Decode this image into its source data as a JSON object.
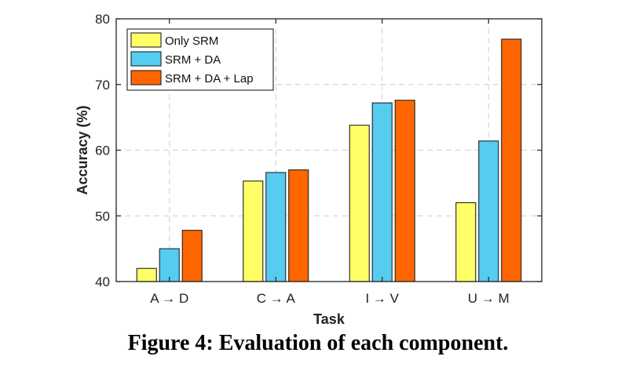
{
  "caption": "Figure 4: Evaluation of each component.",
  "chart_data": {
    "type": "bar",
    "title": "",
    "xlabel": "Task",
    "ylabel": "Accuracy (%)",
    "ylim": [
      40,
      80
    ],
    "yticks": [
      40,
      50,
      60,
      70,
      80
    ],
    "grid": true,
    "legend_position": "top-left",
    "categories": [
      "A → D",
      "C → A",
      "I → V",
      "U → M"
    ],
    "series": [
      {
        "name": "Only SRM",
        "color": "#ffff66",
        "values": [
          42.0,
          55.3,
          63.8,
          52.0
        ]
      },
      {
        "name": "SRM + DA",
        "color": "#55ccf0",
        "values": [
          45.0,
          56.6,
          67.2,
          61.4
        ]
      },
      {
        "name": "SRM + DA + Lap",
        "color": "#ff6600",
        "values": [
          47.8,
          57.0,
          67.6,
          76.9
        ]
      }
    ]
  }
}
